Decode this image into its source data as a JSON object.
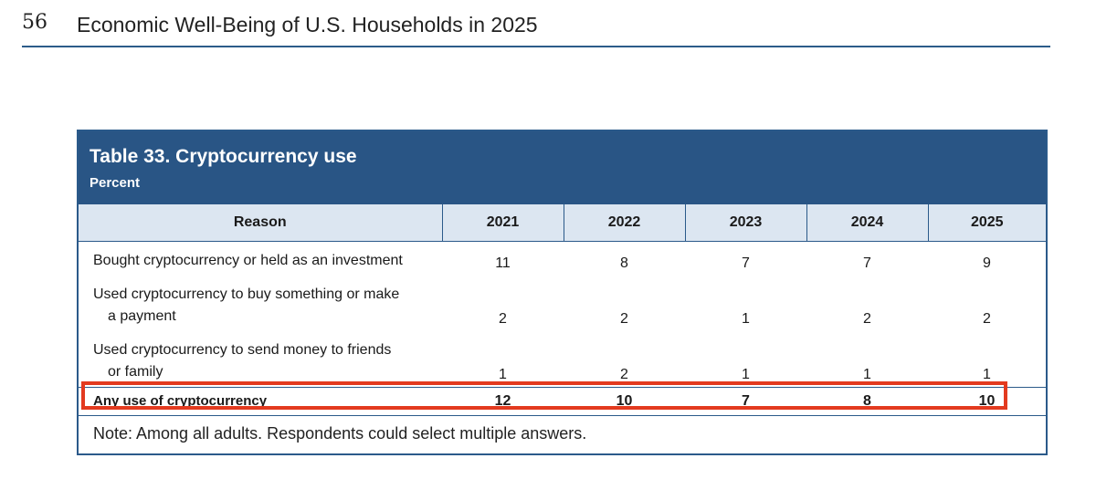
{
  "page_header": {
    "page_number": "56",
    "running_title": "Economic Well-Being of U.S. Households in 2025"
  },
  "table": {
    "title": "Table 33. Cryptocurrency use",
    "unit": "Percent",
    "columns": [
      "Reason",
      "2021",
      "2022",
      "2023",
      "2024",
      "2025"
    ],
    "rows": [
      {
        "reason_line1": "Bought cryptocurrency or held as an investment",
        "reason_line2": "",
        "values": [
          "11",
          "8",
          "7",
          "7",
          "9"
        ]
      },
      {
        "reason_line1": "Used cryptocurrency to buy something or make",
        "reason_line2": "a payment",
        "values": [
          "2",
          "2",
          "1",
          "2",
          "2"
        ]
      },
      {
        "reason_line1": "Used cryptocurrency to send money to friends",
        "reason_line2": "or family",
        "values": [
          "1",
          "2",
          "1",
          "1",
          "1"
        ]
      }
    ],
    "total_row": {
      "reason": "Any use of cryptocurrency",
      "values": [
        "12",
        "10",
        "7",
        "8",
        "10"
      ]
    },
    "note": "Note: Among all adults. Respondents could select multiple answers."
  },
  "highlight_color": "#e33a1f",
  "accent_color": "#295585"
}
